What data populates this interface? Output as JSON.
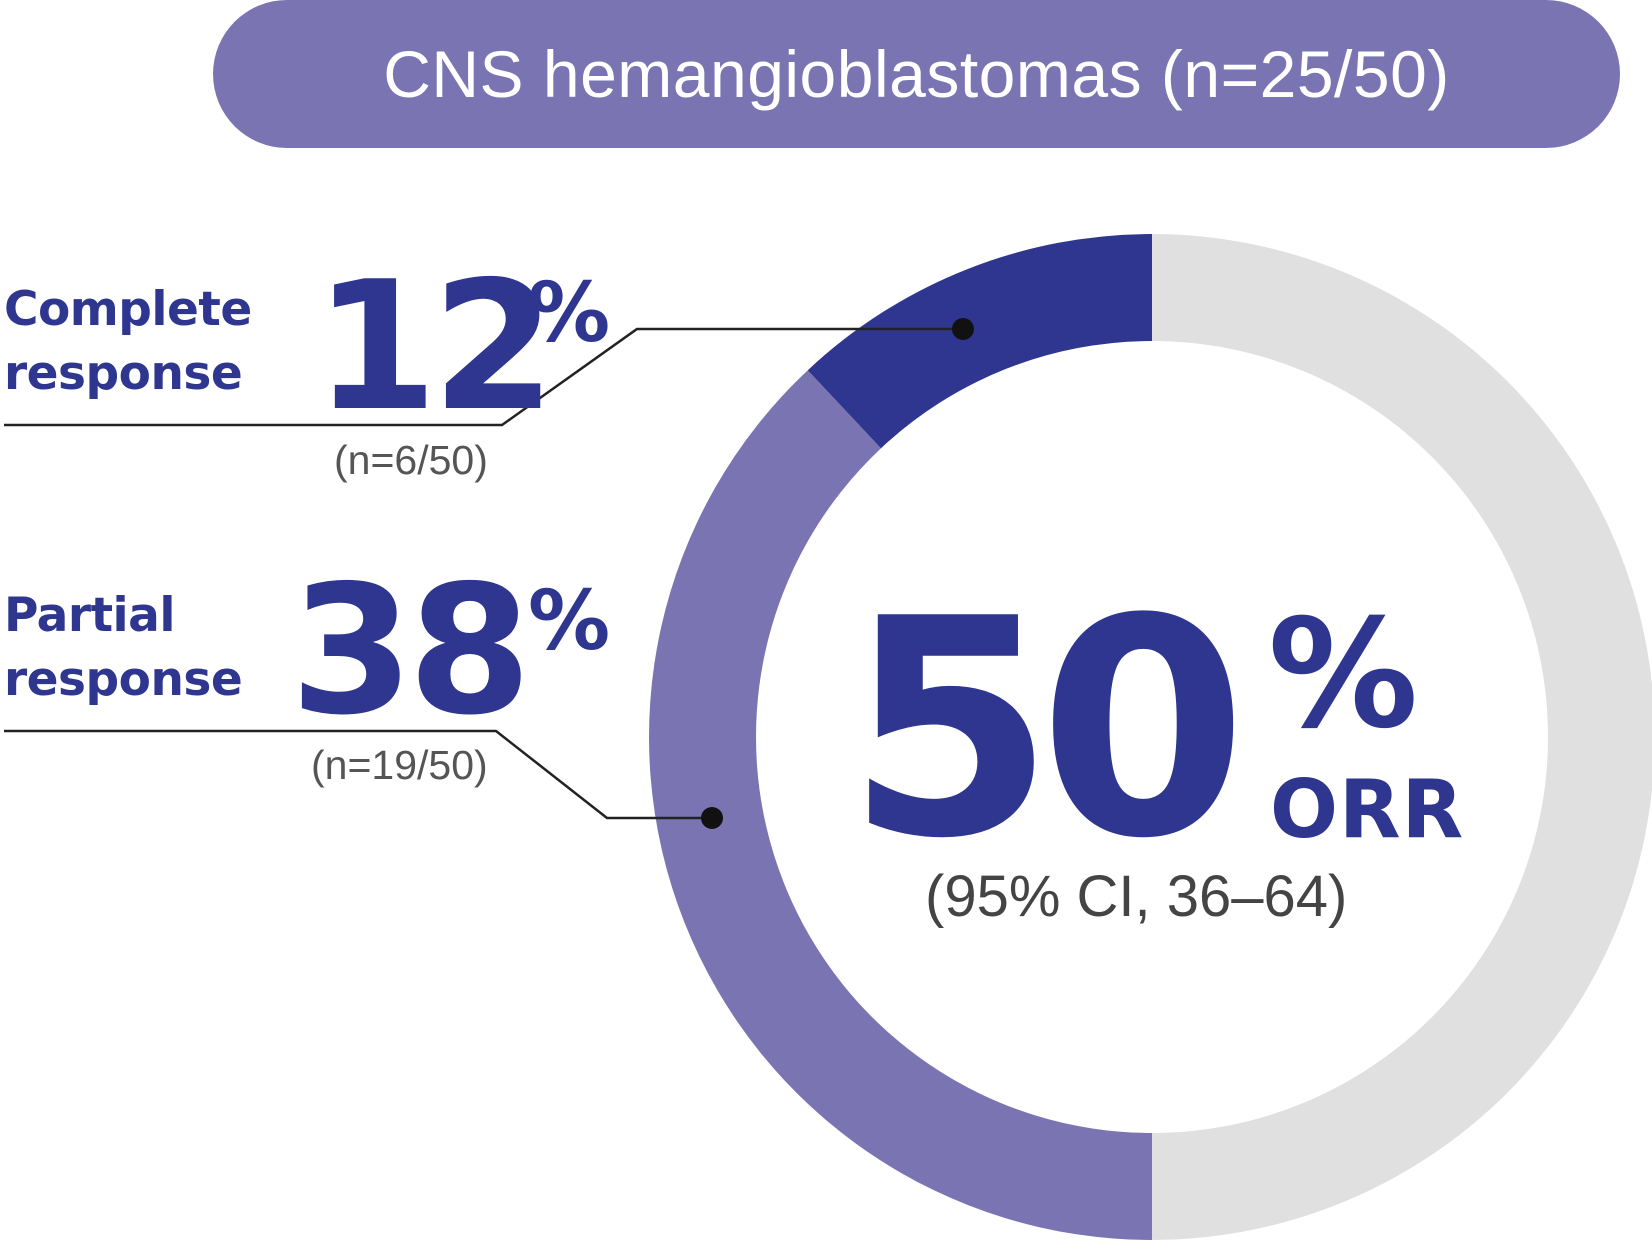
{
  "banner": {
    "title": "CNS hemangioblastomas (n=25/50)"
  },
  "complete": {
    "label_line1": "Complete",
    "label_line2": "response",
    "value": "12",
    "sign": "%",
    "count": "(n=6/50)"
  },
  "partial": {
    "label_line1": "Partial",
    "label_line2": "response",
    "value": "38",
    "sign": "%",
    "count": "(n=19/50)"
  },
  "orr": {
    "value": "50",
    "sign": "%",
    "label": "ORR",
    "ci": "(95% CI, 36–64)"
  },
  "colors": {
    "complete": "#2e368f",
    "partial": "#7a75b2",
    "remainder": "#e0e0e0"
  },
  "chart_data": {
    "type": "pie",
    "categories": [
      "Complete response",
      "Partial response",
      "No response"
    ],
    "values": [
      12,
      38,
      50
    ],
    "units": "%"
  }
}
